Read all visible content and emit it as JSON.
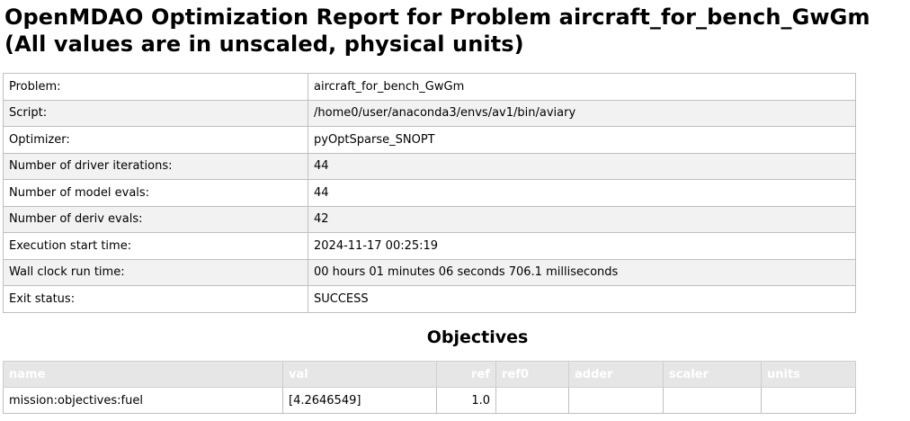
{
  "title": {
    "line1": "OpenMDAO Optimization Report for Problem aircraft_for_bench_GwGm",
    "line2": "(All values are in unscaled, physical units)"
  },
  "summary": [
    {
      "label": "Problem:",
      "value": "aircraft_for_bench_GwGm"
    },
    {
      "label": "Script:",
      "value": "/home0/user/anaconda3/envs/av1/bin/aviary"
    },
    {
      "label": "Optimizer:",
      "value": "pyOptSparse_SNOPT"
    },
    {
      "label": "Number of driver iterations:",
      "value": "44"
    },
    {
      "label": "Number of model evals:",
      "value": "44"
    },
    {
      "label": "Number of deriv evals:",
      "value": "42"
    },
    {
      "label": "Execution start time:",
      "value": "2024-11-17 00:25:19"
    },
    {
      "label": "Wall clock run time:",
      "value": "00 hours 01 minutes 06 seconds 706.1 milliseconds"
    },
    {
      "label": "Exit status:",
      "value": "SUCCESS"
    }
  ],
  "objectives": {
    "heading": "Objectives",
    "columns": [
      "name",
      "val",
      "ref",
      "ref0",
      "adder",
      "scaler",
      "units"
    ],
    "rows": [
      {
        "name": "mission:objectives:fuel",
        "val": "[4.2646549]",
        "ref": "1.0",
        "ref0": "",
        "adder": "",
        "scaler": "",
        "units": ""
      }
    ]
  }
}
